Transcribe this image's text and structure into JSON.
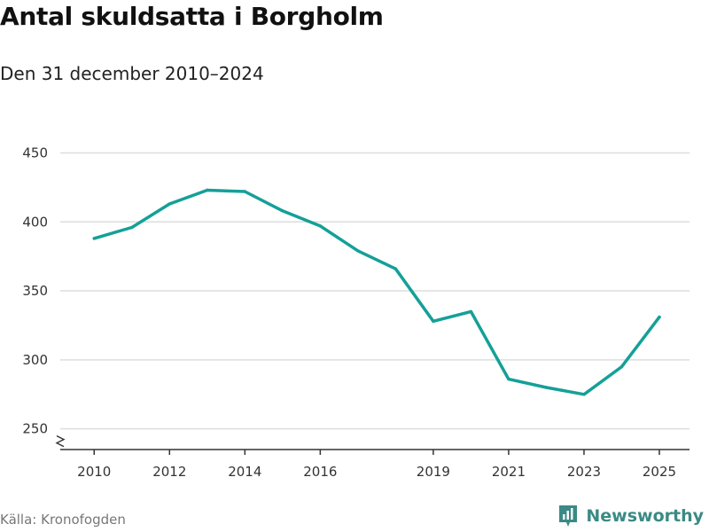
{
  "title": "Antal skuldsatta i Borgholm",
  "subtitle": "Den 31 december 2010–2024",
  "source": "Källa: Kronofogden",
  "brand": {
    "name": "Newsworthy",
    "icon": "bar-chart-logo-icon",
    "color": "#3a8a85"
  },
  "colors": {
    "line": "#14a098",
    "grid": "#dddddd",
    "axis": "#333333"
  },
  "chart_data": {
    "type": "line",
    "title": "Antal skuldsatta i Borgholm",
    "subtitle": "Den 31 december 2010–2024",
    "xlabel": "",
    "ylabel": "",
    "x": [
      2010,
      2011,
      2012,
      2013,
      2014,
      2015,
      2016,
      2017,
      2018,
      2019,
      2020,
      2021,
      2022,
      2023,
      2024,
      2025
    ],
    "series": [
      {
        "values": [
          388,
          396,
          413,
          423,
          422,
          408,
          397,
          379,
          366,
          328,
          335,
          286,
          280,
          275,
          295,
          331
        ]
      }
    ],
    "xticks": [
      2010,
      2012,
      2014,
      2016,
      2019,
      2021,
      2023,
      2025
    ],
    "yticks": [
      250,
      300,
      350,
      400,
      450
    ],
    "xlim": [
      2009.1,
      2025.8
    ],
    "ylim": [
      235,
      458
    ],
    "axis_break": true,
    "grid": true,
    "legend": "none"
  }
}
